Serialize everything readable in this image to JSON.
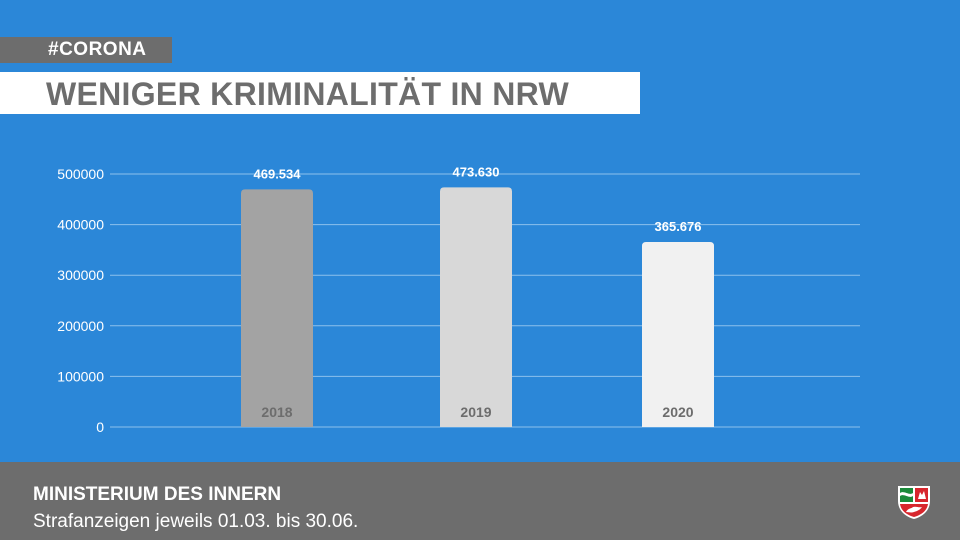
{
  "header": {
    "tag": "#CORONA",
    "title": "WENIGER KRIMINALITÄT IN NRW"
  },
  "footer": {
    "ministry": "MINISTERIUM DES INNERN",
    "subline": "Strafanzeigen jeweils 01.03. bis 30.06."
  },
  "colors": {
    "background": "#2b87d8",
    "footer": "#6d6d6d",
    "tag_box": "#6d6d6d",
    "title_box": "#ffffff",
    "title_text": "#6d6d6d",
    "gridline": "#8cc0ec",
    "axis_text": "#ffffff",
    "value_label": "#ffffff",
    "category_label": "#6d6d6d"
  },
  "icons": {
    "crest": "nrw-coat-of-arms-icon"
  },
  "chart_data": {
    "type": "bar",
    "title": "WENIGER KRIMINALITÄT IN NRW",
    "xlabel": "",
    "ylabel": "",
    "categories": [
      "2018",
      "2019",
      "2020"
    ],
    "values": [
      469534,
      473630,
      365676
    ],
    "value_labels": [
      "469.534",
      "473.630",
      "365.676"
    ],
    "bar_colors": [
      "#a3a3a3",
      "#d8d8d8",
      "#f1f1f1"
    ],
    "ylim": [
      0,
      500000
    ],
    "yticks": [
      0,
      100000,
      200000,
      300000,
      400000,
      500000
    ],
    "ytick_labels": [
      "0",
      "100000",
      "200000",
      "300000",
      "400000",
      "500000"
    ],
    "grid": true,
    "legend": "none"
  }
}
